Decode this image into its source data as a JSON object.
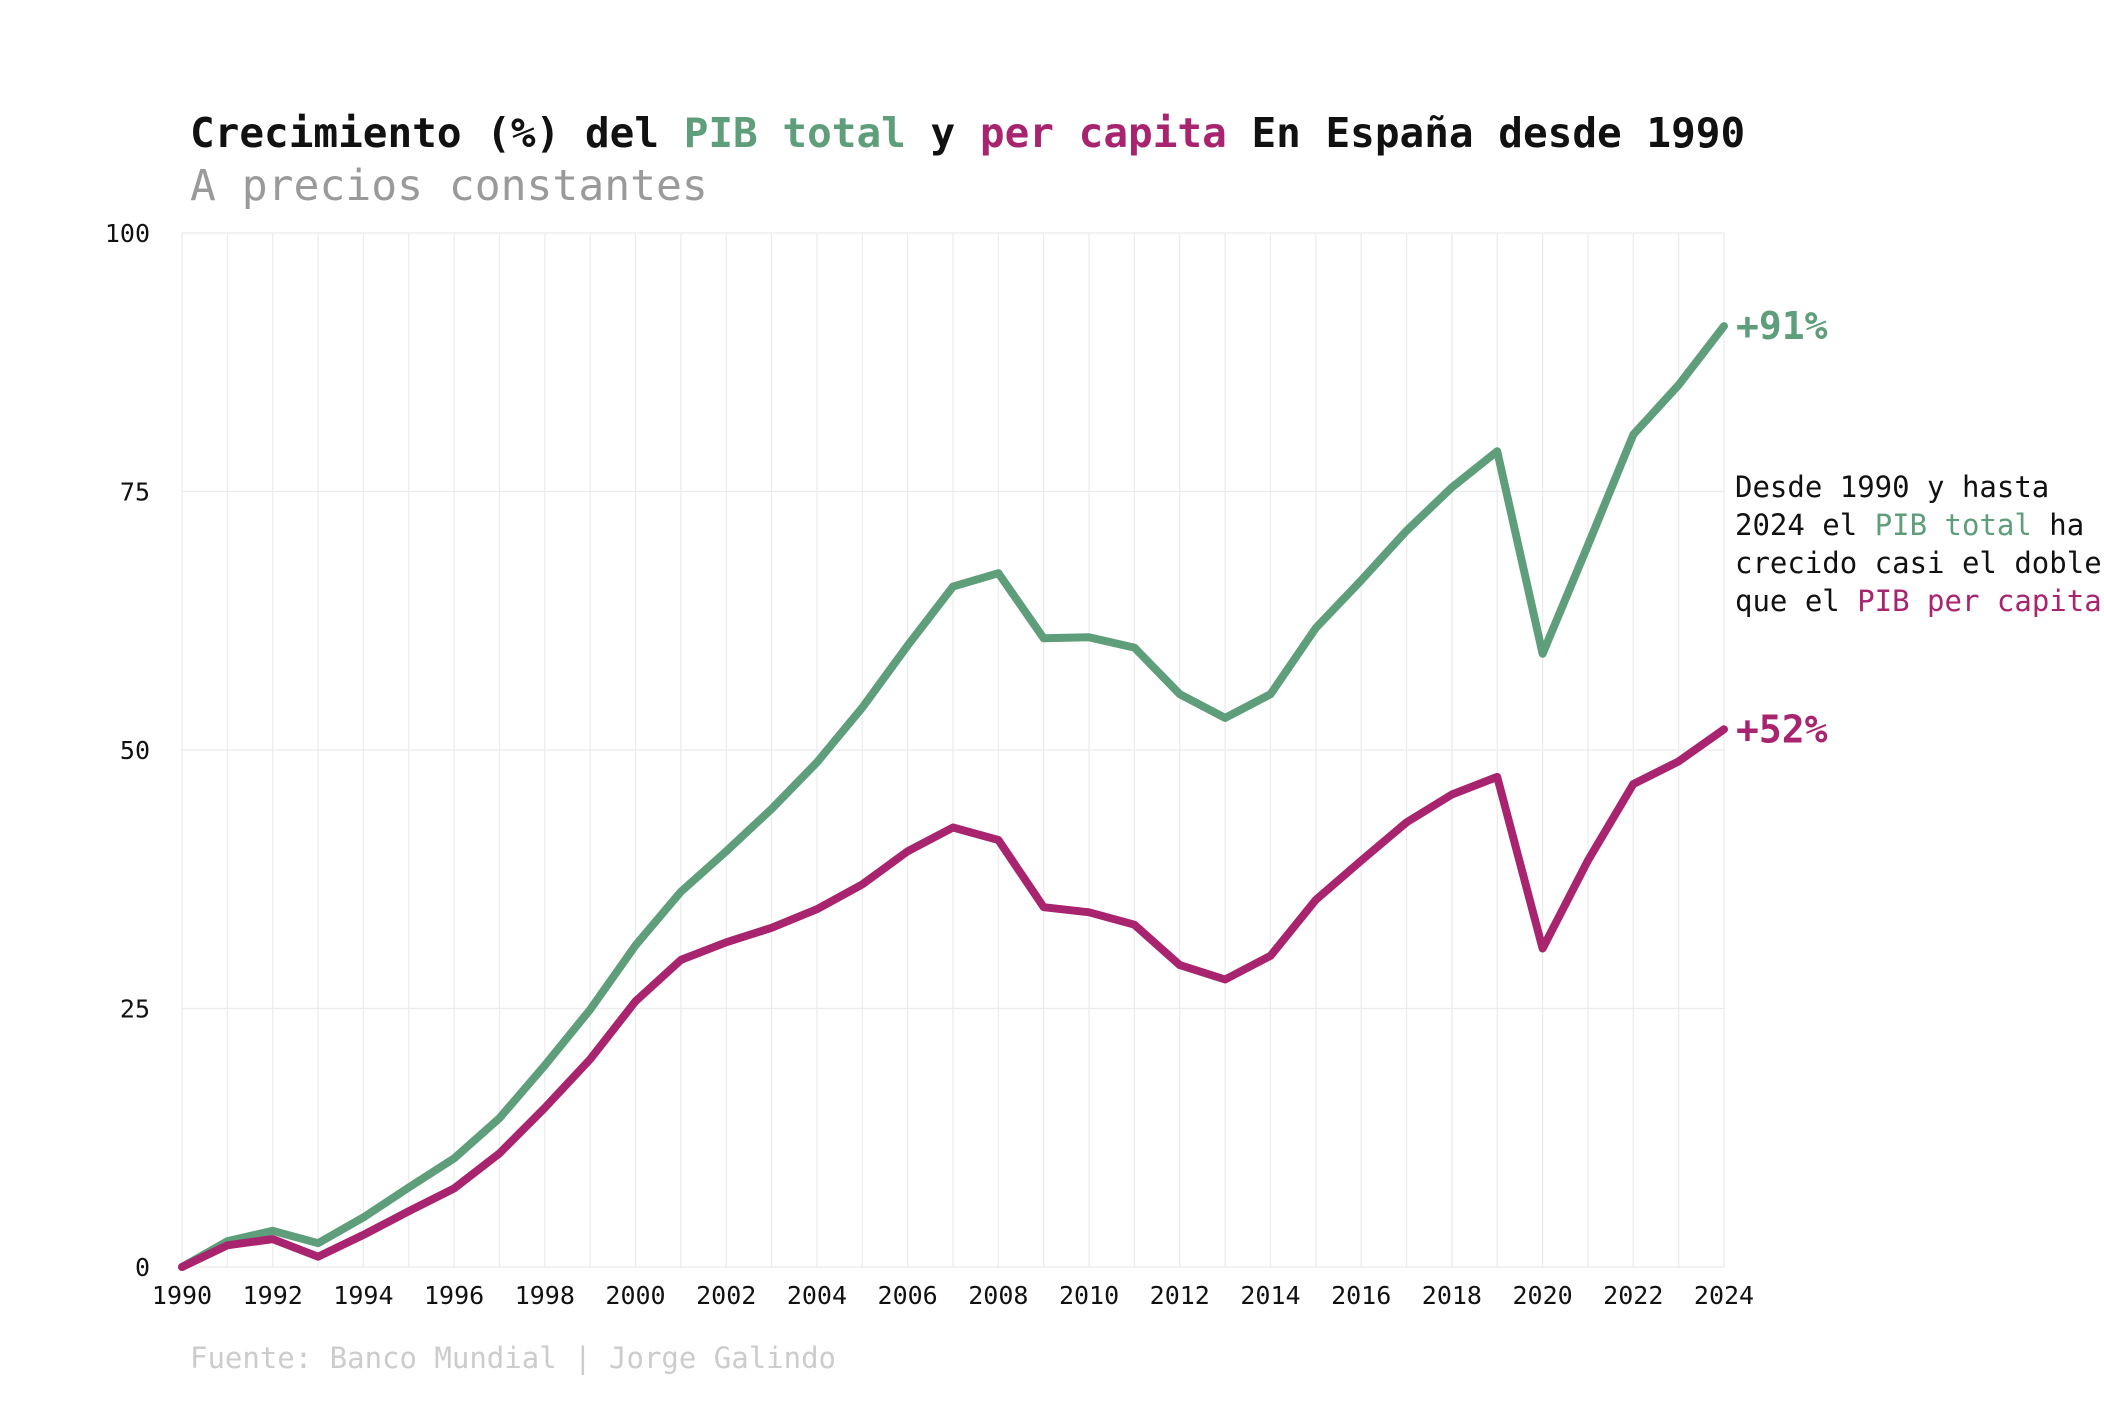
{
  "colors": {
    "total": "#5f9e7b",
    "per_capita": "#a9246e",
    "text": "#111111",
    "subtitle": "#9a9a9a",
    "source": "#cccccc",
    "grid": "#ebebeb"
  },
  "header": {
    "title_prefix": "Crecimiento (%) del ",
    "title_total": "PIB total",
    "title_middle": " y ",
    "title_percap": "per capita",
    "title_suffix": " En España desde 1990",
    "subtitle": "A precios constantes"
  },
  "annotation": {
    "line1": "Desde 1990 y hasta",
    "line2_a": "2024 el ",
    "line2_b": "PIB total",
    "line2_c": " ha",
    "line3": "crecido casi el doble",
    "line4_a": "que el ",
    "line4_b": "PIB per capita"
  },
  "source": "Fuente: Banco Mundial | Jorge Galindo",
  "chart_data": {
    "type": "line",
    "x": [
      1990,
      1991,
      1992,
      1993,
      1994,
      1995,
      1996,
      1997,
      1998,
      1999,
      2000,
      2001,
      2002,
      2003,
      2004,
      2005,
      2006,
      2007,
      2008,
      2009,
      2010,
      2011,
      2012,
      2013,
      2014,
      2015,
      2016,
      2017,
      2018,
      2019,
      2020,
      2021,
      2022,
      2023,
      2024
    ],
    "x_ticks": [
      "1990",
      "1992",
      "1994",
      "1996",
      "1998",
      "2000",
      "2002",
      "2004",
      "2006",
      "2008",
      "2010",
      "2012",
      "2014",
      "2016",
      "2018",
      "2020",
      "2022",
      "2024"
    ],
    "y_ticks": [
      "0",
      "25",
      "50",
      "75",
      "100"
    ],
    "ylim": [
      0,
      100
    ],
    "xlim": [
      1990,
      2024
    ],
    "grid": true,
    "series": [
      {
        "key": "total",
        "name": "PIB total",
        "end_label": "+91%",
        "values": [
          0,
          2.5,
          3.5,
          2.3,
          4.8,
          7.7,
          10.5,
          14.4,
          19.5,
          24.9,
          31.1,
          36.3,
          40.2,
          44.3,
          48.8,
          54.1,
          60.1,
          65.8,
          67.1,
          60.8,
          60.9,
          59.9,
          55.4,
          53.1,
          55.4,
          61.8,
          66.4,
          71.2,
          75.4,
          78.9,
          59.3,
          69.8,
          80.5,
          85.3,
          91.0
        ]
      },
      {
        "key": "per_capita",
        "name": "per capita",
        "end_label": "+52%",
        "values": [
          0,
          2.1,
          2.7,
          1.0,
          3.1,
          5.4,
          7.6,
          11.0,
          15.4,
          20.1,
          25.7,
          29.7,
          31.4,
          32.8,
          34.6,
          37.0,
          40.2,
          42.5,
          41.3,
          34.8,
          34.3,
          33.1,
          29.2,
          27.8,
          30.1,
          35.5,
          39.3,
          43.0,
          45.7,
          47.4,
          30.8,
          39.3,
          46.7,
          48.9,
          52.0
        ]
      }
    ]
  }
}
